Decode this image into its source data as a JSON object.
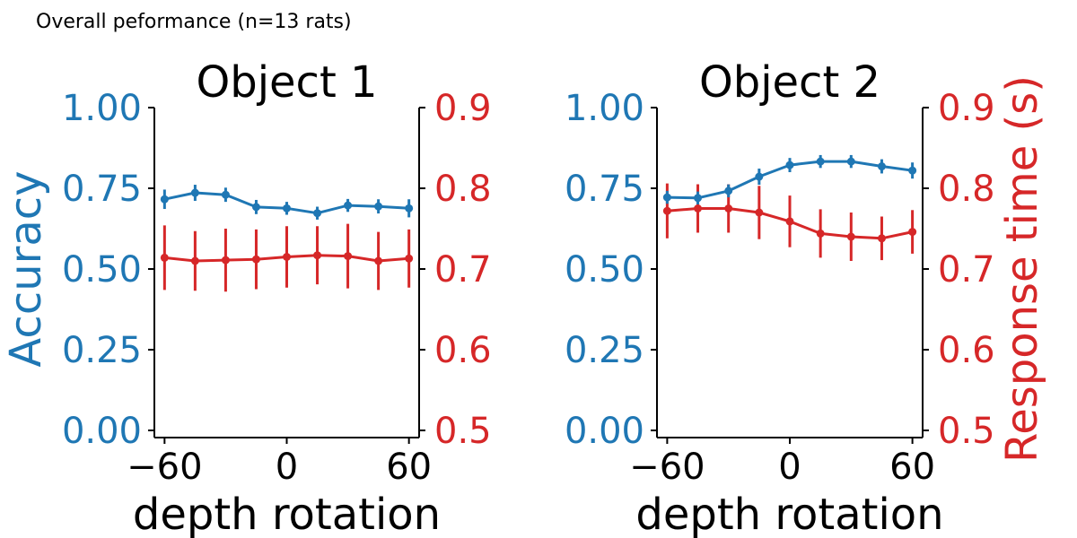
{
  "figure": {
    "suptitle": "Overall peformance (n=13 rats)"
  },
  "colors": {
    "accuracy": "#1f77b4",
    "response_time": "#d62728",
    "axis": "#000000"
  },
  "chart_data": [
    {
      "type": "line",
      "title": "Object 1",
      "xlabel": "depth rotation",
      "ylabel_left": "Accuracy",
      "ylabel_right": "",
      "x": [
        -60,
        -45,
        -30,
        -15,
        0,
        15,
        30,
        45,
        60
      ],
      "xlim": [
        -65,
        65
      ],
      "xticks": [
        -60,
        0,
        60
      ],
      "xtick_labels": [
        "−60",
        "0",
        "60"
      ],
      "ylim_left": [
        0.0,
        1.0
      ],
      "yticks_left": [
        0.0,
        0.25,
        0.5,
        0.75,
        1.0
      ],
      "ytick_labels_left": [
        "0.00",
        "0.25",
        "0.50",
        "0.75",
        "1.00"
      ],
      "ylim_right": [
        0.5,
        0.9
      ],
      "yticks_right": [
        0.5,
        0.6,
        0.7,
        0.8,
        0.9
      ],
      "ytick_labels_right": [
        "0.5",
        "0.6",
        "0.7",
        "0.8",
        "0.9"
      ],
      "series": [
        {
          "axis": "left",
          "values": [
            0.716,
            0.736,
            0.73,
            0.692,
            0.688,
            0.673,
            0.697,
            0.694,
            0.688
          ],
          "error": [
            0.03,
            0.025,
            0.022,
            0.022,
            0.02,
            0.02,
            0.02,
            0.022,
            0.028
          ]
        },
        {
          "axis": "right",
          "values": [
            0.714,
            0.71,
            0.711,
            0.712,
            0.715,
            0.717,
            0.716,
            0.71,
            0.713
          ],
          "error": [
            0.04,
            0.037,
            0.039,
            0.037,
            0.038,
            0.036,
            0.04,
            0.036,
            0.036
          ]
        }
      ]
    },
    {
      "type": "line",
      "title": "Object 2",
      "xlabel": "depth rotation",
      "ylabel_left": "",
      "ylabel_right": "Response time (s)",
      "x": [
        -60,
        -45,
        -30,
        -15,
        0,
        15,
        30,
        45,
        60
      ],
      "xlim": [
        -65,
        65
      ],
      "xticks": [
        -60,
        0,
        60
      ],
      "xtick_labels": [
        "−60",
        "0",
        "60"
      ],
      "ylim_left": [
        0.0,
        1.0
      ],
      "yticks_left": [
        0.0,
        0.25,
        0.5,
        0.75,
        1.0
      ],
      "ytick_labels_left": [
        "0.00",
        "0.25",
        "0.50",
        "0.75",
        "1.00"
      ],
      "ylim_right": [
        0.5,
        0.9
      ],
      "yticks_right": [
        0.5,
        0.6,
        0.7,
        0.8,
        0.9
      ],
      "ytick_labels_right": [
        "0.5",
        "0.6",
        "0.7",
        "0.8",
        "0.9"
      ],
      "series": [
        {
          "axis": "left",
          "values": [
            0.722,
            0.72,
            0.742,
            0.786,
            0.822,
            0.833,
            0.833,
            0.818,
            0.805
          ],
          "error": [
            0.02,
            0.02,
            0.02,
            0.025,
            0.022,
            0.02,
            0.02,
            0.022,
            0.025
          ]
        },
        {
          "axis": "right",
          "values": [
            0.772,
            0.775,
            0.775,
            0.77,
            0.759,
            0.744,
            0.74,
            0.738,
            0.746
          ],
          "error": [
            0.034,
            0.03,
            0.03,
            0.033,
            0.032,
            0.03,
            0.03,
            0.027,
            0.027
          ]
        }
      ]
    }
  ]
}
